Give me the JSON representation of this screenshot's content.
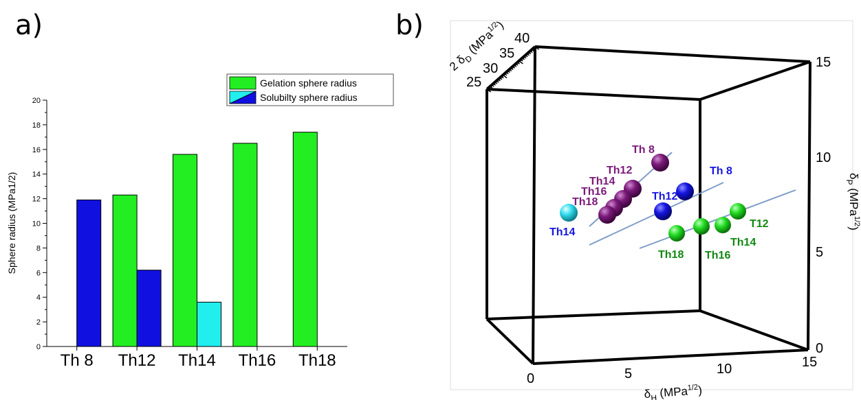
{
  "panel_a_label": "a)",
  "panel_b_label": "b)",
  "chart_data": [
    {
      "type": "bar",
      "ylabel": "Sphere radius (MPa1/2)",
      "categories": [
        "Th 8",
        "Th12",
        "Th14",
        "Th16",
        "Th18"
      ],
      "ylim": [
        0,
        20
      ],
      "yticks": [
        "0",
        "2",
        "4",
        "6",
        "8",
        "10",
        "12",
        "14",
        "16",
        "18",
        "20"
      ],
      "legend_position": "top-right",
      "series": [
        {
          "name": "Gelation sphere radius",
          "color": "#22ee22",
          "values": [
            null,
            12.3,
            15.6,
            16.5,
            17.4
          ]
        },
        {
          "name": "Solubilty sphere radius",
          "color": "#1010e0",
          "values": [
            11.9,
            6.2,
            3.6,
            null,
            null
          ],
          "point_colors": [
            "#1010e0",
            "#1010e0",
            "#22eeee",
            null,
            null
          ]
        }
      ]
    },
    {
      "type": "scatter3d",
      "axes": {
        "x": {
          "label": "δH (MPa1/2)",
          "ticks": [
            "0",
            "5",
            "10",
            "15"
          ],
          "range": [
            0,
            15
          ]
        },
        "y": {
          "label": "δP (MPa1/2)",
          "ticks": [
            "0",
            "5",
            "10",
            "15"
          ],
          "range": [
            0,
            15
          ]
        },
        "z": {
          "label": "2 δD (MPa1/2)",
          "ticks": [
            "25",
            "30",
            "35",
            "40"
          ],
          "range": [
            25,
            40
          ]
        }
      },
      "groups": [
        {
          "color": "#7a1a7a",
          "points": [
            {
              "label": "Th 8"
            },
            {
              "label": "Th12"
            },
            {
              "label": "Th14"
            },
            {
              "label": "Th16"
            },
            {
              "label": "Th18"
            }
          ]
        },
        {
          "color": "#1515e0",
          "points": [
            {
              "label": "Th 8"
            },
            {
              "label": "Th12"
            }
          ]
        },
        {
          "color": "#22dd22",
          "label_color": "#118811",
          "points": [
            {
              "label": "T12"
            },
            {
              "label": "Th14"
            },
            {
              "label": "Th16"
            },
            {
              "label": "Th18"
            }
          ]
        },
        {
          "color": "#33ddee",
          "label_color": "#1515e0",
          "points": [
            {
              "label": "Th14"
            }
          ]
        }
      ]
    }
  ]
}
